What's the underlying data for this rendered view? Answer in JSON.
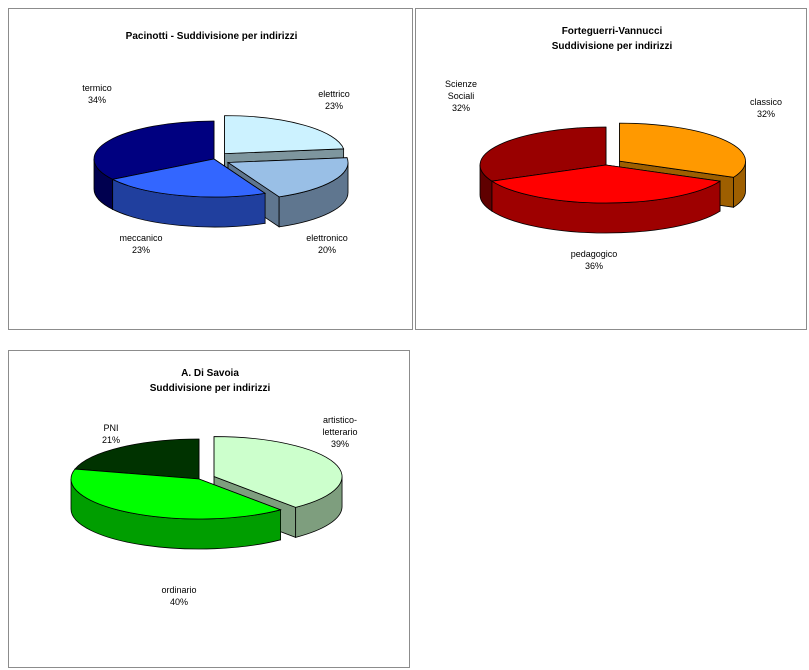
{
  "chart_data": [
    {
      "type": "pie",
      "title_lines": [
        "Pacinotti - Suddivisione per indirizzi"
      ],
      "categories": [
        "elettrico",
        "elettronico",
        "meccanico",
        "termico"
      ],
      "values": [
        23,
        20,
        23,
        34
      ],
      "value_labels": [
        "23%",
        "20%",
        "23%",
        "34%"
      ],
      "colors": [
        "#ccf2ff",
        "#99bfe6",
        "#3366ff",
        "#000080"
      ],
      "exploded": [
        "elettrico",
        "elettronico"
      ],
      "three_d": true
    },
    {
      "type": "pie",
      "title_lines": [
        "Forteguerri-Vannucci",
        "Suddivisione per indirizzi"
      ],
      "categories": [
        "classico",
        "pedagogico",
        "Scienze Sociali"
      ],
      "value_labels": [
        "32%",
        "36%",
        "32%"
      ],
      "label_lines": [
        [
          "classico"
        ],
        [
          "pedagogico"
        ],
        [
          "Scienze",
          "Sociali"
        ]
      ],
      "values": [
        32,
        36,
        32
      ],
      "colors": [
        "#ff9900",
        "#ff0000",
        "#990000"
      ],
      "exploded": [
        "classico"
      ],
      "three_d": true
    },
    {
      "type": "pie",
      "title_lines": [
        "A. Di Savoia",
        "Suddivisione per indirizzi"
      ],
      "categories": [
        "artistico-letterario",
        "ordinario",
        "PNI"
      ],
      "value_labels": [
        "39%",
        "40%",
        "21%"
      ],
      "label_lines": [
        [
          "artistico-",
          "letterario"
        ],
        [
          "ordinario"
        ],
        [
          "PNI"
        ]
      ],
      "values": [
        39,
        40,
        21
      ],
      "colors": [
        "#ccffcc",
        "#00ff00",
        "#003300"
      ],
      "exploded": [
        "artistico-letterario"
      ],
      "three_d": true
    }
  ]
}
